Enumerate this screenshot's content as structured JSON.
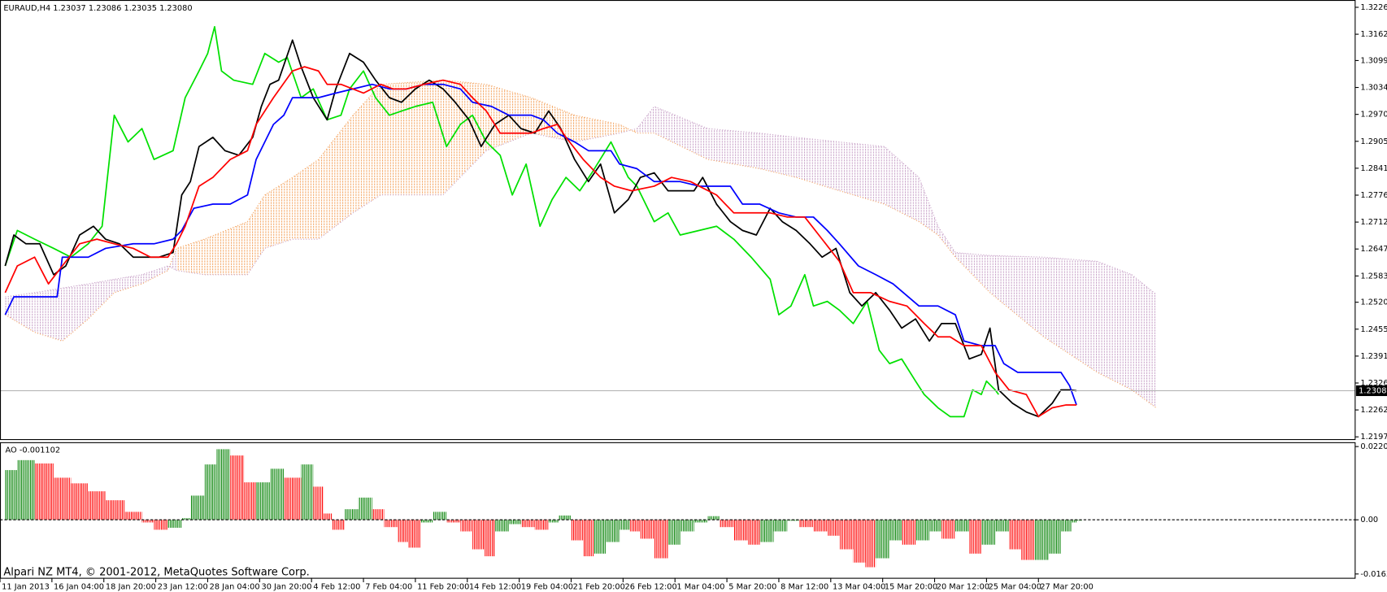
{
  "footer": "Alpari NZ MT4, © 2001-2012, MetaQuotes Software Corp.",
  "chart_data": [
    {
      "type": "line",
      "title": "EURAUD,H4 1.23037 1.23086 1.23035 1.23080",
      "xlim": [
        0,
        783
      ],
      "xticks": [
        {
          "value": 0,
          "label": "11 Jan 2013"
        },
        {
          "value": 30,
          "label": "16 Jan 04:00"
        },
        {
          "value": 60,
          "label": "18 Jan 20:00"
        },
        {
          "value": 90,
          "label": "23 Jan 12:00"
        },
        {
          "value": 120,
          "label": "28 Jan 04:00"
        },
        {
          "value": 150,
          "label": "30 Jan 20:00"
        },
        {
          "value": 180,
          "label": "4 Feb 12:00"
        },
        {
          "value": 210,
          "label": "7 Feb 04:00"
        },
        {
          "value": 240,
          "label": "11 Feb 20:00"
        },
        {
          "value": 270,
          "label": "14 Feb 12:00"
        },
        {
          "value": 300,
          "label": "19 Feb 04:00"
        },
        {
          "value": 330,
          "label": "21 Feb 20:00"
        },
        {
          "value": 360,
          "label": "26 Feb 12:00"
        },
        {
          "value": 390,
          "label": "1 Mar 04:00"
        },
        {
          "value": 420,
          "label": "5 Mar 20:00"
        },
        {
          "value": 450,
          "label": "8 Mar 12:00"
        },
        {
          "value": 480,
          "label": "13 Mar 04:00"
        },
        {
          "value": 510,
          "label": "15 Mar 20:00"
        },
        {
          "value": 540,
          "label": "20 Mar 12:00"
        },
        {
          "value": 570,
          "label": "25 Mar 04:00"
        },
        {
          "value": 600,
          "label": "27 Mar 20:00"
        }
      ],
      "ylim": [
        1.2191,
        1.3244
      ],
      "yticks": [
        1.32265,
        {
          "value": 1.3162,
          "label": "1.31620"
        },
        {
          "value": 1.3099,
          "label": "1.30990"
        },
        1.30345,
        {
          "value": 1.297,
          "label": "1.29700"
        },
        1.29055,
        {
          "value": 1.2841,
          "label": "1.28410"
        },
        1.27765,
        {
          "value": 1.2712,
          "label": "1.27120"
        },
        1.26475,
        {
          "value": 1.2583,
          "label": "1.25830"
        },
        {
          "value": 1.252,
          "label": "1.25200"
        },
        1.24555,
        {
          "value": 1.2391,
          "label": "1.23910"
        },
        1.23265,
        {
          "value": 1.2262,
          "label": "1.22620"
        },
        1.21975
      ],
      "last_price": {
        "value": 1.2308,
        "label": "1.23080"
      },
      "cloud": {
        "up_color": "#f4a460",
        "down_color": "#c8a2c8",
        "x": [
          3,
          20,
          36,
          51,
          66,
          82,
          97,
          102,
          118,
          143,
          153,
          169,
          184,
          204,
          220,
          256,
          281,
          307,
          332,
          358,
          368,
          378,
          409,
          439,
          460,
          485,
          511,
          531,
          542,
          552,
          572,
          603,
          634,
          654,
          668
        ],
        "span_a": [
          1.249,
          1.2448,
          1.2427,
          1.248,
          1.2543,
          1.2564,
          1.2596,
          1.2649,
          1.2671,
          1.2713,
          1.2777,
          1.2819,
          1.2862,
          1.2968,
          1.3042,
          1.3052,
          1.3042,
          1.301,
          1.2968,
          1.2946,
          1.2925,
          1.2925,
          1.2862,
          1.284,
          1.2819,
          1.2787,
          1.2755,
          1.2713,
          1.2681,
          1.2628,
          1.2543,
          1.2437,
          1.2352,
          1.231,
          1.2267
        ],
        "span_b": [
          1.2533,
          1.2543,
          1.2554,
          1.2564,
          1.2575,
          1.2586,
          1.2607,
          1.2596,
          1.2586,
          1.2586,
          1.2649,
          1.2671,
          1.2671,
          1.2734,
          1.2777,
          1.2777,
          1.2883,
          1.2925,
          1.2904,
          1.2925,
          1.2936,
          1.2989,
          1.2936,
          1.2925,
          1.2915,
          1.2904,
          1.2893,
          1.2819,
          1.2702,
          1.2639,
          1.2632,
          1.2628,
          1.2618,
          1.2586,
          1.2539
        ]
      },
      "series": [
        {
          "color": "#00e000",
          "x": [
            3,
            10,
            20,
            31,
            41,
            51,
            59,
            66,
            74,
            82,
            89,
            100,
            107,
            115,
            120,
            124,
            128,
            135,
            146,
            153,
            161,
            166,
            174,
            181,
            189,
            197,
            202,
            210,
            217,
            225,
            232,
            240,
            250,
            258,
            266,
            273,
            281,
            289,
            296,
            304,
            312,
            319,
            327,
            335,
            342,
            353,
            363,
            368,
            378,
            386,
            393,
            404,
            414,
            424,
            434,
            445,
            450,
            457,
            465,
            470,
            478,
            485,
            493,
            501,
            508,
            514,
            521,
            529,
            534,
            542,
            549,
            557,
            562,
            567,
            570,
            575,
            577
          ],
          "values": [
            1.2607,
            1.2692,
            1.2671,
            1.2649,
            1.2628,
            1.266,
            1.2702,
            1.2968,
            1.2904,
            1.2936,
            1.2862,
            1.2883,
            1.301,
            1.3074,
            1.3116,
            1.318,
            1.3074,
            1.3052,
            1.3042,
            1.3116,
            1.3095,
            1.3106,
            1.301,
            1.3031,
            1.2957,
            1.2968,
            1.3031,
            1.3074,
            1.301,
            1.2968,
            1.2978,
            1.2989,
            1.2999,
            1.2893,
            1.2946,
            1.2968,
            1.2904,
            1.2872,
            1.2777,
            1.2851,
            1.2702,
            1.2766,
            1.2819,
            1.2787,
            1.283,
            1.2904,
            1.2819,
            1.2798,
            1.2713,
            1.2734,
            1.2681,
            1.2692,
            1.2702,
            1.2671,
            1.2628,
            1.2575,
            1.249,
            1.2511,
            1.2586,
            1.2511,
            1.2522,
            1.2501,
            1.2469,
            1.2522,
            1.2405,
            1.2373,
            1.2384,
            1.2331,
            1.2299,
            1.2267,
            1.2246,
            1.2246,
            1.231,
            1.2299,
            1.2331,
            1.231,
            1.2299
          ]
        },
        {
          "color": "#000000",
          "x": [
            3,
            8,
            15,
            23,
            31,
            38,
            46,
            54,
            61,
            69,
            77,
            84,
            92,
            100,
            105,
            110,
            115,
            123,
            130,
            138,
            146,
            151,
            156,
            161,
            169,
            174,
            181,
            189,
            194,
            202,
            210,
            217,
            225,
            232,
            240,
            248,
            256,
            263,
            271,
            278,
            286,
            294,
            301,
            309,
            317,
            324,
            332,
            340,
            347,
            355,
            363,
            370,
            378,
            386,
            393,
            401,
            406,
            414,
            422,
            429,
            437,
            445,
            452,
            460,
            468,
            475,
            483,
            491,
            498,
            506,
            514,
            521,
            529,
            537,
            544,
            552,
            560,
            567,
            572,
            577,
            585,
            593,
            600,
            608,
            613,
            618,
            622
          ],
          "values": [
            1.2607,
            1.2681,
            1.266,
            1.266,
            1.2586,
            1.2607,
            1.2681,
            1.2702,
            1.2671,
            1.266,
            1.2628,
            1.2628,
            1.2628,
            1.2639,
            1.2777,
            1.2809,
            1.2893,
            1.2915,
            1.2883,
            1.2872,
            1.2915,
            1.2989,
            1.3042,
            1.3052,
            1.3148,
            1.3084,
            1.301,
            1.2957,
            1.3031,
            1.3116,
            1.3095,
            1.3052,
            1.301,
            1.2999,
            1.3031,
            1.3052,
            1.3031,
            1.2999,
            1.2957,
            1.2893,
            1.2946,
            1.2968,
            1.2936,
            1.2925,
            1.2978,
            1.2936,
            1.2862,
            1.2809,
            1.2851,
            1.2734,
            1.2766,
            1.2819,
            1.283,
            1.2787,
            1.2787,
            1.2787,
            1.2819,
            1.2755,
            1.2713,
            1.2692,
            1.2681,
            1.2745,
            1.2713,
            1.2692,
            1.266,
            1.2628,
            1.2649,
            1.2543,
            1.2511,
            1.2543,
            1.2501,
            1.2458,
            1.248,
            1.2427,
            1.2469,
            1.2469,
            1.2384,
            1.2395,
            1.2458,
            1.231,
            1.2278,
            1.2257,
            1.2246,
            1.2278,
            1.231,
            1.231,
            1.2308
          ]
        },
        {
          "color": "#0000ff",
          "x": [
            3,
            8,
            20,
            33,
            36,
            51,
            61,
            77,
            89,
            100,
            105,
            112,
            123,
            133,
            143,
            148,
            158,
            164,
            169,
            179,
            184,
            194,
            204,
            215,
            225,
            235,
            245,
            256,
            266,
            273,
            284,
            294,
            307,
            314,
            322,
            332,
            340,
            353,
            358,
            368,
            378,
            393,
            404,
            422,
            429,
            439,
            450,
            460,
            470,
            478,
            485,
            496,
            506,
            516,
            531,
            542,
            552,
            557,
            567,
            575,
            580,
            588,
            598,
            613,
            618,
            622
          ],
          "values": [
            1.249,
            1.2533,
            1.2533,
            1.2533,
            1.2628,
            1.2628,
            1.2649,
            1.266,
            1.266,
            1.2671,
            1.2692,
            1.2745,
            1.2755,
            1.2755,
            1.2777,
            1.2862,
            1.2946,
            1.2968,
            1.301,
            1.301,
            1.301,
            1.3021,
            1.3031,
            1.3042,
            1.3031,
            1.3031,
            1.3042,
            1.3042,
            1.3031,
            1.2999,
            1.2989,
            1.2968,
            1.2968,
            1.2957,
            1.2925,
            1.2904,
            1.2883,
            1.2883,
            1.2851,
            1.284,
            1.2809,
            1.2809,
            1.2798,
            1.2798,
            1.2755,
            1.2755,
            1.2734,
            1.2724,
            1.2724,
            1.2692,
            1.266,
            1.2607,
            1.2586,
            1.2564,
            1.2511,
            1.2511,
            1.249,
            1.2427,
            1.2416,
            1.2416,
            1.2373,
            1.2352,
            1.2352,
            1.2352,
            1.232,
            1.2274
          ]
        },
        {
          "color": "#ff0000",
          "x": [
            3,
            10,
            20,
            28,
            36,
            46,
            56,
            66,
            77,
            87,
            97,
            102,
            107,
            115,
            123,
            133,
            143,
            148,
            158,
            169,
            176,
            184,
            189,
            197,
            210,
            220,
            227,
            235,
            245,
            256,
            266,
            273,
            281,
            289,
            296,
            307,
            314,
            322,
            327,
            337,
            347,
            355,
            365,
            378,
            388,
            399,
            404,
            414,
            424,
            434,
            445,
            455,
            465,
            475,
            485,
            493,
            503,
            514,
            524,
            534,
            542,
            549,
            557,
            567,
            575,
            583,
            593,
            600,
            608,
            616,
            622
          ],
          "values": [
            1.2543,
            1.2607,
            1.2628,
            1.2564,
            1.2607,
            1.266,
            1.2671,
            1.266,
            1.2649,
            1.2628,
            1.2628,
            1.266,
            1.2702,
            1.2798,
            1.2819,
            1.2862,
            1.2883,
            1.2946,
            1.301,
            1.3074,
            1.3084,
            1.3074,
            1.3042,
            1.3042,
            1.3021,
            1.3042,
            1.3031,
            1.3031,
            1.3042,
            1.3052,
            1.3042,
            1.301,
            1.2978,
            1.2925,
            1.2925,
            1.2925,
            1.2936,
            1.2946,
            1.2915,
            1.2862,
            1.2819,
            1.2798,
            1.2787,
            1.2798,
            1.2819,
            1.2809,
            1.2798,
            1.2777,
            1.2734,
            1.2734,
            1.2734,
            1.2724,
            1.2724,
            1.2671,
            1.2618,
            1.2543,
            1.2543,
            1.2522,
            1.2511,
            1.2469,
            1.2437,
            1.2437,
            1.2416,
            1.2416,
            1.2352,
            1.231,
            1.2299,
            1.2246,
            1.2267,
            1.2274,
            1.2274
          ]
        }
      ]
    },
    {
      "type": "bar",
      "title": "AO -0.001102",
      "xlim": [
        0,
        783
      ],
      "ylim": [
        -0.0175,
        0.0234
      ],
      "yticks": [
        0.02209,
        {
          "value": 0,
          "label": "0.00"
        },
        -0.01634
      ],
      "up_color": "#008000",
      "down_color": "#ff0000",
      "x": [
        3,
        10,
        20,
        31,
        41,
        51,
        61,
        72,
        82,
        89,
        97,
        105,
        110,
        118,
        125,
        133,
        141,
        148,
        156,
        164,
        174,
        181,
        187,
        192,
        199,
        207,
        215,
        222,
        230,
        236,
        243,
        250,
        258,
        266,
        273,
        280,
        286,
        294,
        301,
        309,
        317,
        323,
        330,
        337,
        343,
        350,
        358,
        364,
        370,
        378,
        386,
        393,
        401,
        409,
        416,
        424,
        432,
        439,
        447,
        455,
        462,
        470,
        478,
        485,
        493,
        500,
        506,
        514,
        521,
        529,
        537,
        544,
        552,
        560,
        567,
        575,
        583,
        590,
        598,
        606,
        613,
        619,
        622
      ],
      "values": [
        0.015,
        0.018,
        0.017,
        0.0127,
        0.011,
        0.0086,
        0.0059,
        0.0024,
        -0.0008,
        -0.003,
        -0.0024,
        0.0005,
        0.0073,
        0.0167,
        0.0213,
        0.0194,
        0.0113,
        0.0113,
        0.0154,
        0.0127,
        0.0167,
        0.01,
        0.0019,
        -0.003,
        0.0032,
        0.0067,
        0.0032,
        -0.0022,
        -0.0067,
        -0.0084,
        -0.0008,
        0.0024,
        -0.0008,
        -0.0035,
        -0.0089,
        -0.011,
        -0.0035,
        -0.0013,
        -0.0022,
        -0.003,
        -0.0008,
        0.0013,
        -0.0062,
        -0.011,
        -0.0102,
        -0.0067,
        -0.003,
        -0.0035,
        -0.0057,
        -0.0116,
        -0.0075,
        -0.0035,
        -0.0008,
        0.0011,
        -0.0022,
        -0.0062,
        -0.0075,
        -0.0067,
        -0.0035,
        -0.0003,
        -0.0022,
        -0.0035,
        -0.0048,
        -0.0089,
        -0.0129,
        -0.0143,
        -0.0116,
        -0.0062,
        -0.0075,
        -0.0062,
        -0.0035,
        -0.0057,
        -0.0035,
        -0.0102,
        -0.0075,
        -0.0035,
        -0.0089,
        -0.0121,
        -0.0121,
        -0.0102,
        -0.0035,
        -0.0008,
        -0.0003
      ]
    }
  ]
}
